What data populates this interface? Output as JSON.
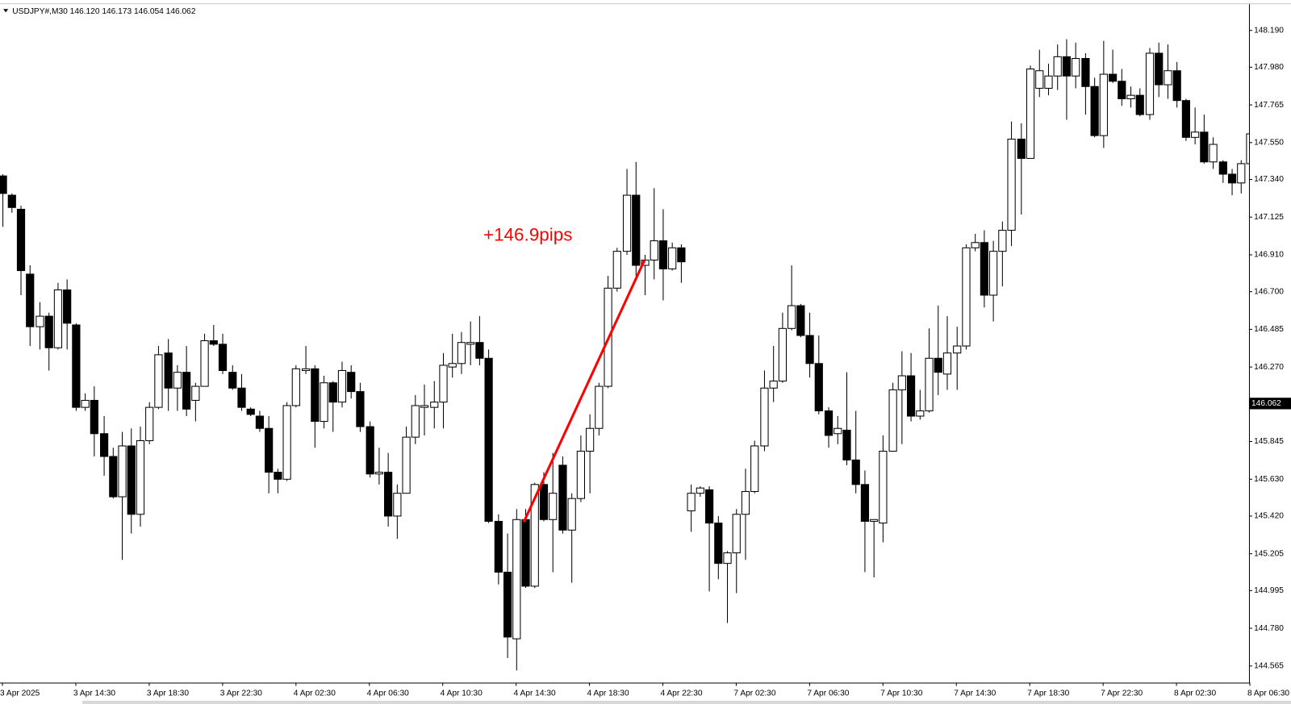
{
  "chart_data": {
    "type": "candlestick",
    "title": "USDJPY#,M30  146.120 146.173 146.054 146.062",
    "annotation": "+146.9pips",
    "colors": {
      "up": "#ffffff",
      "down": "#000000",
      "wick": "#000000"
    },
    "current_price": 146.062,
    "categories": [
      "3 Apr 2025",
      null,
      null,
      null,
      null,
      null,
      null,
      null,
      "3 Apr 14:30",
      null,
      null,
      null,
      null,
      null,
      null,
      null,
      "3 Apr 18:30",
      null,
      null,
      null,
      null,
      null,
      null,
      null,
      "3 Apr 22:30",
      null,
      null,
      null,
      null,
      null,
      null,
      null,
      "4 Apr 02:30",
      null,
      null,
      null,
      null,
      null,
      null,
      null,
      "4 Apr 06:30",
      null,
      null,
      null,
      null,
      null,
      null,
      null,
      "4 Apr 10:30",
      null,
      null,
      null,
      null,
      null,
      null,
      null,
      "4 Apr 14:30",
      null,
      null,
      null,
      null,
      null,
      null,
      null,
      "4 Apr 18:30",
      null,
      null,
      null,
      null,
      null,
      null,
      null,
      "4 Apr 22:30",
      null,
      null,
      null,
      null,
      null,
      null,
      null,
      "7 Apr 02:30",
      null,
      null,
      null,
      null,
      null,
      null,
      null,
      "7 Apr 06:30",
      null,
      null,
      null,
      null,
      null,
      null,
      null,
      "7 Apr 10:30",
      null,
      null,
      null,
      null,
      null,
      null,
      null,
      "7 Apr 14:30",
      null,
      null,
      null,
      null,
      null,
      null,
      null,
      "7 Apr 18:30",
      null,
      null,
      null,
      null,
      null,
      null,
      null,
      "7 Apr 22:30",
      null,
      null,
      null,
      null,
      null,
      null,
      null,
      "8 Apr 02:30",
      null,
      null,
      null,
      null,
      null,
      null,
      null,
      "8 Apr 06:30"
    ],
    "open": [
      147.36,
      147.25,
      147.17,
      146.8,
      146.5,
      146.56,
      146.38,
      146.71,
      146.51,
      146.04,
      146.08,
      145.89,
      145.76,
      145.53,
      145.82,
      145.43,
      145.85,
      146.04,
      146.35,
      146.15,
      146.24,
      146.08,
      146.16,
      146.42,
      146.4,
      146.24,
      146.15,
      146.03,
      145.99,
      145.92,
      145.67,
      145.63,
      146.05,
      146.25,
      146.26,
      145.96,
      146.18,
      146.07,
      146.24,
      146.13,
      145.93,
      145.66,
      145.67,
      145.42,
      145.55,
      145.87,
      146.04,
      146.04,
      146.07,
      146.27,
      146.29,
      146.4,
      146.41,
      146.32,
      145.39,
      145.1,
      144.72,
      145.4,
      145.02,
      145.6,
      145.4,
      145.71,
      145.34,
      145.52,
      145.79,
      145.92,
      146.16,
      146.72,
      146.93,
      147.25,
      146.85,
      146.88,
      146.99,
      146.83,
      146.95,
      145.45,
      145.55,
      145.57,
      145.38,
      145.15,
      145.21,
      145.43,
      145.56,
      145.82,
      146.15,
      146.19,
      146.49,
      146.62,
      146.45,
      146.29,
      146.02,
      145.89,
      145.91,
      145.74,
      145.6,
      145.39,
      145.38,
      145.79,
      146.14,
      146.22,
      145.99,
      146.02,
      146.32,
      146.23,
      146.35,
      146.39,
      146.95,
      146.98,
      146.68,
      146.93,
      147.05,
      147.57,
      147.46,
      147.86,
      147.86,
      147.93,
      148.04,
      147.93,
      148.03,
      147.87,
      147.59,
      147.94,
      147.9,
      147.8,
      147.82,
      147.71,
      148.06,
      147.88,
      147.96,
      147.79,
      147.58,
      147.61,
      147.44,
      147.44,
      147.37,
      147.32,
      147.43
    ],
    "high": [
      147.37,
      147.26,
      147.19,
      146.85,
      146.64,
      146.58,
      146.75,
      146.77,
      146.52,
      146.12,
      146.16,
      145.99,
      145.81,
      145.9,
      145.92,
      145.93,
      146.07,
      146.39,
      146.43,
      146.28,
      146.39,
      146.18,
      146.46,
      146.51,
      146.46,
      146.28,
      146.23,
      146.04,
      146.02,
      145.99,
      145.69,
      146.07,
      146.28,
      146.39,
      146.28,
      146.22,
      146.19,
      146.3,
      146.28,
      146.18,
      145.96,
      145.81,
      145.78,
      145.6,
      145.93,
      146.11,
      146.17,
      146.19,
      146.35,
      146.46,
      146.47,
      146.53,
      146.56,
      146.37,
      145.43,
      145.32,
      145.46,
      145.46,
      145.61,
      145.67,
      145.78,
      145.76,
      145.55,
      145.88,
      146.0,
      146.18,
      146.79,
      146.95,
      147.4,
      147.44,
      146.91,
      147.29,
      147.17,
      146.98,
      146.97,
      145.6,
      145.59,
      145.59,
      145.42,
      145.22,
      145.46,
      145.69,
      145.85,
      146.25,
      146.39,
      146.58,
      146.85,
      146.63,
      146.58,
      146.45,
      146.04,
      145.99,
      146.24,
      146.02,
      145.68,
      145.4,
      145.88,
      146.18,
      146.36,
      146.35,
      146.14,
      146.49,
      146.62,
      146.56,
      146.5,
      146.97,
      147.03,
      147.05,
      146.99,
      147.1,
      147.67,
      147.66,
      147.99,
      148.08,
      148.0,
      148.11,
      148.14,
      148.12,
      148.06,
      147.92,
      148.13,
      148.08,
      147.97,
      147.87,
      147.86,
      148.09,
      148.12,
      148.11,
      148.01,
      147.8,
      147.75,
      147.71,
      147.58,
      147.45,
      147.4,
      147.45,
      147.66
    ],
    "low": [
      147.07,
      147.15,
      146.68,
      146.39,
      146.37,
      146.25,
      146.37,
      146.37,
      146.02,
      146.02,
      145.76,
      145.65,
      145.52,
      145.17,
      145.32,
      145.36,
      145.83,
      146.03,
      146.02,
      146.02,
      145.99,
      145.96,
      146.16,
      146.39,
      146.23,
      146.14,
      146.02,
      145.99,
      145.9,
      145.55,
      145.55,
      145.62,
      146.04,
      146.23,
      145.81,
      145.92,
      145.9,
      146.04,
      146.09,
      145.9,
      145.64,
      145.6,
      145.36,
      145.29,
      145.55,
      145.83,
      145.88,
      145.92,
      145.92,
      146.21,
      146.23,
      146.28,
      146.28,
      145.38,
      145.03,
      144.61,
      144.54,
      145.01,
      145.01,
      145.39,
      145.1,
      145.32,
      145.04,
      145.5,
      145.55,
      145.88,
      146.15,
      146.7,
      146.91,
      146.79,
      146.68,
      146.77,
      146.65,
      146.82,
      146.75,
      145.33,
      145.53,
      144.99,
      145.06,
      144.81,
      144.98,
      145.17,
      145.55,
      145.79,
      146.07,
      146.18,
      146.48,
      146.44,
      146.21,
      146.0,
      145.81,
      145.83,
      145.71,
      145.55,
      145.1,
      145.07,
      145.27,
      145.79,
      145.83,
      145.96,
      145.97,
      146.01,
      146.11,
      146.14,
      146.14,
      146.37,
      146.93,
      146.61,
      146.53,
      146.73,
      146.96,
      147.14,
      147.46,
      147.81,
      147.82,
      147.85,
      147.68,
      147.86,
      147.71,
      147.58,
      147.52,
      147.89,
      147.76,
      147.75,
      147.7,
      147.68,
      147.81,
      147.8,
      147.75,
      147.56,
      147.54,
      147.43,
      147.4,
      147.32,
      147.25,
      147.26,
      147.4
    ],
    "close": [
      147.26,
      147.18,
      146.82,
      146.5,
      146.56,
      146.38,
      146.71,
      146.52,
      146.04,
      146.08,
      145.89,
      145.76,
      145.53,
      145.82,
      145.43,
      145.85,
      146.04,
      146.34,
      146.15,
      146.24,
      146.03,
      146.16,
      146.42,
      146.4,
      146.25,
      146.15,
      146.04,
      146.0,
      145.92,
      145.67,
      145.63,
      146.05,
      146.26,
      146.26,
      145.96,
      146.18,
      146.07,
      146.25,
      146.13,
      145.93,
      145.66,
      145.67,
      145.42,
      145.55,
      145.87,
      146.05,
      146.05,
      146.07,
      146.28,
      146.29,
      146.41,
      146.41,
      146.32,
      145.39,
      145.1,
      144.73,
      145.4,
      145.02,
      145.6,
      145.4,
      145.55,
      145.34,
      145.52,
      145.79,
      145.92,
      146.16,
      146.72,
      146.93,
      147.25,
      146.85,
      146.88,
      146.99,
      146.83,
      146.95,
      146.87,
      145.55,
      145.58,
      145.38,
      145.15,
      145.21,
      145.43,
      145.56,
      145.82,
      146.15,
      146.19,
      146.49,
      146.62,
      146.45,
      146.29,
      146.02,
      145.88,
      145.92,
      145.74,
      145.6,
      145.39,
      145.4,
      145.79,
      146.14,
      146.22,
      145.99,
      146.02,
      146.32,
      146.24,
      146.35,
      146.39,
      146.95,
      146.98,
      146.68,
      146.93,
      147.05,
      147.57,
      147.46,
      147.97,
      147.96,
      147.93,
      148.04,
      147.93,
      148.03,
      147.87,
      147.59,
      147.94,
      147.9,
      147.8,
      147.82,
      147.71,
      148.06,
      147.88,
      147.96,
      147.79,
      147.58,
      147.61,
      147.44,
      147.54,
      147.37,
      147.32,
      147.43,
      147.6
    ],
    "ylim": [
      144.47,
      148.34
    ],
    "yticks": [
      {
        "value": 148.19,
        "label": "148.190"
      },
      {
        "value": 147.98,
        "label": "147.980"
      },
      {
        "value": 147.765,
        "label": "147.765"
      },
      {
        "value": 147.55,
        "label": "147.550"
      },
      {
        "value": 147.34,
        "label": "147.340"
      },
      {
        "value": 147.125,
        "label": "147.125"
      },
      {
        "value": 146.91,
        "label": "146.910"
      },
      {
        "value": 146.7,
        "label": "146.700"
      },
      {
        "value": 146.485,
        "label": "146.485"
      },
      {
        "value": 146.27,
        "label": "146.270"
      },
      {
        "value": 145.845,
        "label": "145.845"
      },
      {
        "value": 145.63,
        "label": "145.630"
      },
      {
        "value": 145.42,
        "label": "145.420"
      },
      {
        "value": 145.205,
        "label": "145.205"
      },
      {
        "value": 144.995,
        "label": "144.995"
      },
      {
        "value": 144.78,
        "label": "144.780"
      },
      {
        "value": 144.565,
        "label": "144.565"
      }
    ]
  }
}
